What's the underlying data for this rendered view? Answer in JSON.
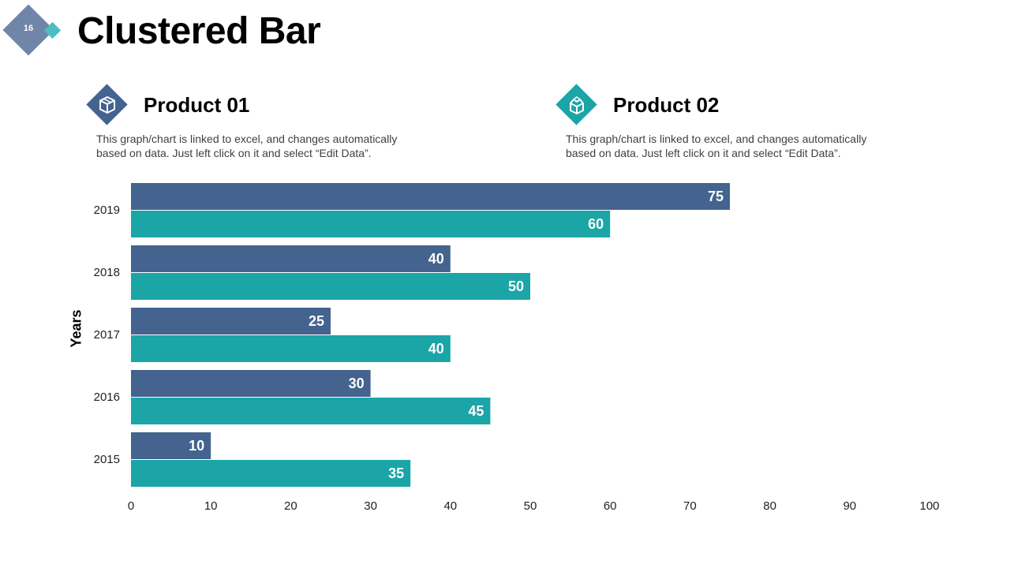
{
  "slide": {
    "page_number": "16",
    "title": "Clustered Bar"
  },
  "products": [
    {
      "title": "Product 01",
      "description": "This graph/chart is linked to excel, and changes automatically based on data. Just left click on it and select “Edit Data”.",
      "icon": "box-icon",
      "color": "#44638f"
    },
    {
      "title": "Product 02",
      "description": "This graph/chart is linked to excel, and changes automatically based on data. Just left click on it and select “Edit Data”.",
      "icon": "open-box-icon",
      "color": "#1ba5a7"
    }
  ],
  "chart_data": {
    "type": "bar",
    "orientation": "horizontal",
    "title": "Clustered Bar",
    "xlabel": "",
    "ylabel": "Years",
    "categories": [
      "2019",
      "2018",
      "2017",
      "2016",
      "2015"
    ],
    "series": [
      {
        "name": "Product 01",
        "color": "#44638f",
        "values": [
          75,
          40,
          25,
          30,
          10
        ]
      },
      {
        "name": "Product 02",
        "color": "#1ba5a7",
        "values": [
          60,
          50,
          40,
          45,
          35
        ]
      }
    ],
    "xlim": [
      0,
      100
    ],
    "xticks": [
      0,
      10,
      20,
      30,
      40,
      50,
      60,
      70,
      80,
      90,
      100
    ],
    "grid": false,
    "legend": "none"
  }
}
